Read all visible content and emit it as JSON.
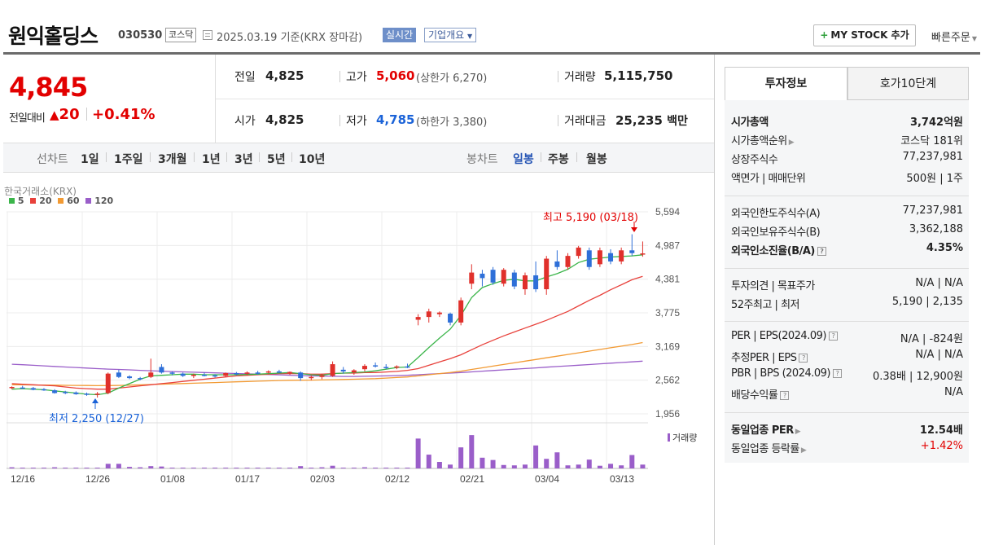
{
  "header": {
    "name": "원익홀딩스",
    "code": "030530",
    "market": "코스닥",
    "date_text": "2025.03.19  기준(KRX 장마감)",
    "realtime_button": "실시간",
    "company_info_button": "기업개요",
    "mystock_button": "MY STOCK 추가",
    "quick_order": "빠른주문"
  },
  "price": {
    "current": "4,845",
    "change_label": "전일대비",
    "change": "20",
    "change_rate": "+0.41%"
  },
  "quote": {
    "prev_close_label": "전일",
    "prev_close": "4,825",
    "high_label": "고가",
    "high": "5,060",
    "upper_limit_label": "(상한가",
    "upper_limit": "6,270)",
    "volume_label": "거래량",
    "volume": "5,115,750",
    "open_label": "시가",
    "open": "4,825",
    "low_label": "저가",
    "low": "4,785",
    "lower_limit_label": "(하한가",
    "lower_limit": "3,380)",
    "amount_label": "거래대금",
    "amount": "25,235",
    "amount_unit": "백만"
  },
  "period_bar": {
    "line_label": "선차트",
    "line_periods": [
      "1일",
      "1주일",
      "3개월",
      "1년",
      "3년",
      "5년",
      "10년"
    ],
    "candle_label": "봉차트",
    "candle_periods": [
      "일봉",
      "주봉",
      "월봉"
    ],
    "selected": "일봉"
  },
  "chart": {
    "source": "한국거래소(KRX)",
    "ma_legend": [
      {
        "label": "5",
        "color": "#3bb54a"
      },
      {
        "label": "20",
        "color": "#e8413b"
      },
      {
        "label": "60",
        "color": "#f29a33"
      },
      {
        "label": "120",
        "color": "#9a5ec9"
      }
    ],
    "max_annotation": "최고 5,190 (03/18)",
    "min_annotation": "최저 2,250 (12/27)",
    "volume_label": "거래량",
    "y_ticks": [
      "5,594",
      "4,987",
      "4,381",
      "3,775",
      "3,169",
      "2,562",
      "1,956"
    ],
    "x_ticks": [
      "12/16",
      "12/26",
      "01/08",
      "01/17",
      "02/03",
      "02/12",
      "02/21",
      "03/04",
      "03/13"
    ]
  },
  "chart_data": {
    "type": "candlestick",
    "ylim": [
      1956,
      5594
    ],
    "x_ticks": [
      "12/16",
      "12/26",
      "01/08",
      "01/17",
      "02/03",
      "02/12",
      "02/21",
      "03/04",
      "03/13"
    ],
    "candles": [
      [
        2420,
        2450,
        2400,
        2440
      ],
      [
        2430,
        2460,
        2410,
        2420
      ],
      [
        2420,
        2440,
        2380,
        2390
      ],
      [
        2400,
        2420,
        2370,
        2380
      ],
      [
        2380,
        2400,
        2320,
        2330
      ],
      [
        2350,
        2370,
        2310,
        2340
      ],
      [
        2340,
        2360,
        2300,
        2310
      ],
      [
        2320,
        2340,
        2280,
        2300
      ],
      [
        2300,
        2350,
        2250,
        2320
      ],
      [
        2330,
        2700,
        2310,
        2680
      ],
      [
        2700,
        2750,
        2600,
        2620
      ],
      [
        2630,
        2650,
        2580,
        2600
      ],
      [
        2600,
        2620,
        2560,
        2590
      ],
      [
        2620,
        2950,
        2600,
        2700
      ],
      [
        2800,
        2850,
        2680,
        2700
      ],
      [
        2700,
        2720,
        2650,
        2680
      ],
      [
        2680,
        2700,
        2620,
        2640
      ],
      [
        2640,
        2680,
        2600,
        2660
      ],
      [
        2660,
        2700,
        2630,
        2650
      ],
      [
        2650,
        2670,
        2610,
        2640
      ],
      [
        2640,
        2700,
        2620,
        2690
      ],
      [
        2690,
        2710,
        2650,
        2670
      ],
      [
        2680,
        2720,
        2650,
        2700
      ],
      [
        2700,
        2730,
        2660,
        2690
      ],
      [
        2710,
        2740,
        2680,
        2720
      ],
      [
        2720,
        2750,
        2690,
        2700
      ],
      [
        2700,
        2720,
        2660,
        2710
      ],
      [
        2700,
        2720,
        2550,
        2600
      ],
      [
        2600,
        2650,
        2560,
        2620
      ],
      [
        2620,
        2680,
        2580,
        2650
      ],
      [
        2640,
        2900,
        2620,
        2850
      ],
      [
        2750,
        2800,
        2680,
        2720
      ],
      [
        2700,
        2760,
        2660,
        2740
      ],
      [
        2760,
        2850,
        2720,
        2820
      ],
      [
        2830,
        2880,
        2790,
        2810
      ],
      [
        2800,
        2850,
        2760,
        2790
      ],
      [
        2790,
        2830,
        2760,
        2810
      ],
      [
        2810,
        2860,
        2780,
        2800
      ],
      [
        3650,
        3750,
        3550,
        3700
      ],
      [
        3700,
        3850,
        3600,
        3800
      ],
      [
        3750,
        3800,
        3700,
        3780
      ],
      [
        3760,
        3780,
        3550,
        3600
      ],
      [
        3600,
        4050,
        3550,
        4000
      ],
      [
        4300,
        4650,
        4200,
        4500
      ],
      [
        4480,
        4550,
        4250,
        4400
      ],
      [
        4550,
        4600,
        4280,
        4320
      ],
      [
        4300,
        4580,
        4250,
        4550
      ],
      [
        4500,
        4550,
        4200,
        4250
      ],
      [
        4200,
        4500,
        4100,
        4450
      ],
      [
        4450,
        4700,
        4150,
        4200
      ],
      [
        4200,
        4800,
        4100,
        4750
      ],
      [
        4700,
        4900,
        4550,
        4600
      ],
      [
        4600,
        4850,
        4550,
        4800
      ],
      [
        4800,
        4980,
        4750,
        4950
      ],
      [
        4900,
        4950,
        4550,
        4600
      ],
      [
        4650,
        4950,
        4600,
        4900
      ],
      [
        4850,
        4920,
        4650,
        4700
      ],
      [
        4700,
        4950,
        4650,
        4900
      ],
      [
        4900,
        5190,
        4800,
        4850
      ],
      [
        4825,
        5060,
        4785,
        4845
      ]
    ],
    "volume": [
      0.03,
      0.02,
      0.02,
      0.02,
      0.03,
      0.02,
      0.02,
      0.02,
      0.02,
      0.12,
      0.12,
      0.04,
      0.03,
      0.06,
      0.05,
      0.02,
      0.02,
      0.02,
      0.02,
      0.02,
      0.02,
      0.02,
      0.02,
      0.02,
      0.02,
      0.02,
      0.02,
      0.06,
      0.02,
      0.03,
      0.07,
      0.02,
      0.02,
      0.03,
      0.02,
      0.02,
      0.02,
      0.02,
      0.78,
      0.36,
      0.17,
      0.1,
      0.55,
      0.87,
      0.28,
      0.22,
      0.09,
      0.08,
      0.1,
      0.6,
      0.25,
      0.42,
      0.08,
      0.1,
      0.23,
      0.07,
      0.12,
      0.08,
      0.35,
      0.1
    ],
    "ma5": [
      2400,
      2410,
      2400,
      2390,
      2370,
      2350,
      2330,
      2310,
      2300,
      2330,
      2420,
      2500,
      2580,
      2640,
      2650,
      2660,
      2670,
      2670,
      2660,
      2660,
      2660,
      2660,
      2665,
      2670,
      2680,
      2690,
      2700,
      2680,
      2660,
      2650,
      2680,
      2690,
      2700,
      2710,
      2730,
      2760,
      2790,
      2800,
      2970,
      3150,
      3320,
      3480,
      3730,
      4050,
      4230,
      4300,
      4360,
      4380,
      4350,
      4350,
      4420,
      4480,
      4560,
      4680,
      4740,
      4760,
      4780,
      4790,
      4800,
      4820
    ],
    "ma20": [
      2500,
      2490,
      2480,
      2470,
      2460,
      2440,
      2420,
      2410,
      2400,
      2400,
      2420,
      2440,
      2460,
      2480,
      2500,
      2520,
      2540,
      2560,
      2580,
      2600,
      2620,
      2640,
      2650,
      2660,
      2670,
      2680,
      2680,
      2680,
      2670,
      2670,
      2680,
      2690,
      2690,
      2700,
      2700,
      2710,
      2720,
      2740,
      2770,
      2830,
      2890,
      2950,
      3020,
      3110,
      3200,
      3280,
      3360,
      3430,
      3500,
      3570,
      3640,
      3720,
      3800,
      3900,
      4000,
      4090,
      4190,
      4280,
      4370,
      4430
    ],
    "ma60": [
      2480,
      2478,
      2476,
      2474,
      2472,
      2470,
      2468,
      2466,
      2464,
      2465,
      2468,
      2472,
      2478,
      2484,
      2490,
      2496,
      2502,
      2508,
      2514,
      2520,
      2526,
      2532,
      2538,
      2544,
      2550,
      2556,
      2560,
      2562,
      2564,
      2566,
      2570,
      2575,
      2580,
      2585,
      2590,
      2600,
      2610,
      2620,
      2640,
      2660,
      2680,
      2700,
      2725,
      2755,
      2785,
      2815,
      2845,
      2875,
      2905,
      2935,
      2965,
      2995,
      3025,
      3055,
      3085,
      3115,
      3145,
      3175,
      3205,
      3240
    ],
    "ma120": [
      2850,
      2840,
      2830,
      2820,
      2810,
      2800,
      2790,
      2780,
      2770,
      2762,
      2755,
      2748,
      2740,
      2732,
      2725,
      2718,
      2712,
      2706,
      2700,
      2694,
      2688,
      2682,
      2676,
      2670,
      2664,
      2658,
      2652,
      2646,
      2640,
      2636,
      2632,
      2630,
      2630,
      2632,
      2636,
      2640,
      2646,
      2652,
      2660,
      2670,
      2680,
      2690,
      2700,
      2712,
      2724,
      2736,
      2748,
      2760,
      2772,
      2784,
      2796,
      2808,
      2820,
      2832,
      2844,
      2856,
      2868,
      2880,
      2892,
      2905
    ]
  },
  "tabs": [
    "투자정보",
    "호가10단계"
  ],
  "invest_info": {
    "group1": [
      {
        "k": "시가총액",
        "v": "3,742억원",
        "bold": true
      },
      {
        "k": "시가총액순위",
        "v": "코스닥 181위",
        "arrow": true
      },
      {
        "k": "상장주식수",
        "v": "77,237,981"
      },
      {
        "k": "액면가 | 매매단위",
        "v": "500원 | 1주"
      }
    ],
    "group2": [
      {
        "k": "외국인한도주식수(A)",
        "v": "77,237,981"
      },
      {
        "k": "외국인보유주식수(B)",
        "v": "3,362,188"
      },
      {
        "k": "외국인소진율(B/A)",
        "v": "4.35%",
        "bold": true,
        "help": true
      }
    ],
    "group3": [
      {
        "k": "투자의견 | 목표주가",
        "v": "N/A | N/A"
      },
      {
        "k": "52주최고 | 최저",
        "v": "5,190 | 2,135"
      }
    ],
    "group4": [
      {
        "k": "PER | EPS(2024.09)",
        "v": "N/A | -824원",
        "help": true
      },
      {
        "k": "추정PER | EPS",
        "v": "N/A | N/A",
        "help": true
      },
      {
        "k": "PBR | BPS (2024.09)",
        "v": "0.38배 | 12,900원",
        "help": true
      },
      {
        "k": "배당수익률",
        "v": "N/A",
        "help": true
      }
    ],
    "group5": [
      {
        "k": "동일업종 PER",
        "v": "12.54배",
        "bold": true,
        "arrow": true
      },
      {
        "k": "동일업종 등락률",
        "v": "+1.42%",
        "arrow": true,
        "red": true
      }
    ]
  }
}
